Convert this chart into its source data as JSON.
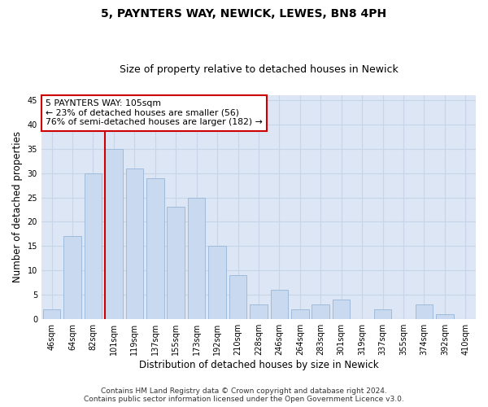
{
  "title": "5, PAYNTERS WAY, NEWICK, LEWES, BN8 4PH",
  "subtitle": "Size of property relative to detached houses in Newick",
  "xlabel": "Distribution of detached houses by size in Newick",
  "ylabel": "Number of detached properties",
  "categories": [
    "46sqm",
    "64sqm",
    "82sqm",
    "101sqm",
    "119sqm",
    "137sqm",
    "155sqm",
    "173sqm",
    "192sqm",
    "210sqm",
    "228sqm",
    "246sqm",
    "264sqm",
    "283sqm",
    "301sqm",
    "319sqm",
    "337sqm",
    "355sqm",
    "374sqm",
    "392sqm",
    "410sqm"
  ],
  "values": [
    2,
    17,
    30,
    35,
    31,
    29,
    23,
    25,
    15,
    9,
    3,
    6,
    2,
    3,
    4,
    0,
    2,
    0,
    3,
    1,
    0
  ],
  "bar_color": "#c9d9f0",
  "bar_edge_color": "#a0bbda",
  "vline_color": "#cc0000",
  "annotation_text": "5 PAYNTERS WAY: 105sqm\n← 23% of detached houses are smaller (56)\n76% of semi-detached houses are larger (182) →",
  "annotation_box_color": "#ffffff",
  "annotation_box_edge": "#cc0000",
  "ylim": [
    0,
    46
  ],
  "yticks": [
    0,
    5,
    10,
    15,
    20,
    25,
    30,
    35,
    40,
    45
  ],
  "grid_color": "#c8d4e8",
  "background_color": "#dce6f5",
  "fig_background": "#ffffff",
  "footer_line1": "Contains HM Land Registry data © Crown copyright and database right 2024.",
  "footer_line2": "Contains public sector information licensed under the Open Government Licence v3.0.",
  "title_fontsize": 10,
  "subtitle_fontsize": 9,
  "tick_fontsize": 7,
  "label_fontsize": 8.5,
  "footer_fontsize": 6.5
}
